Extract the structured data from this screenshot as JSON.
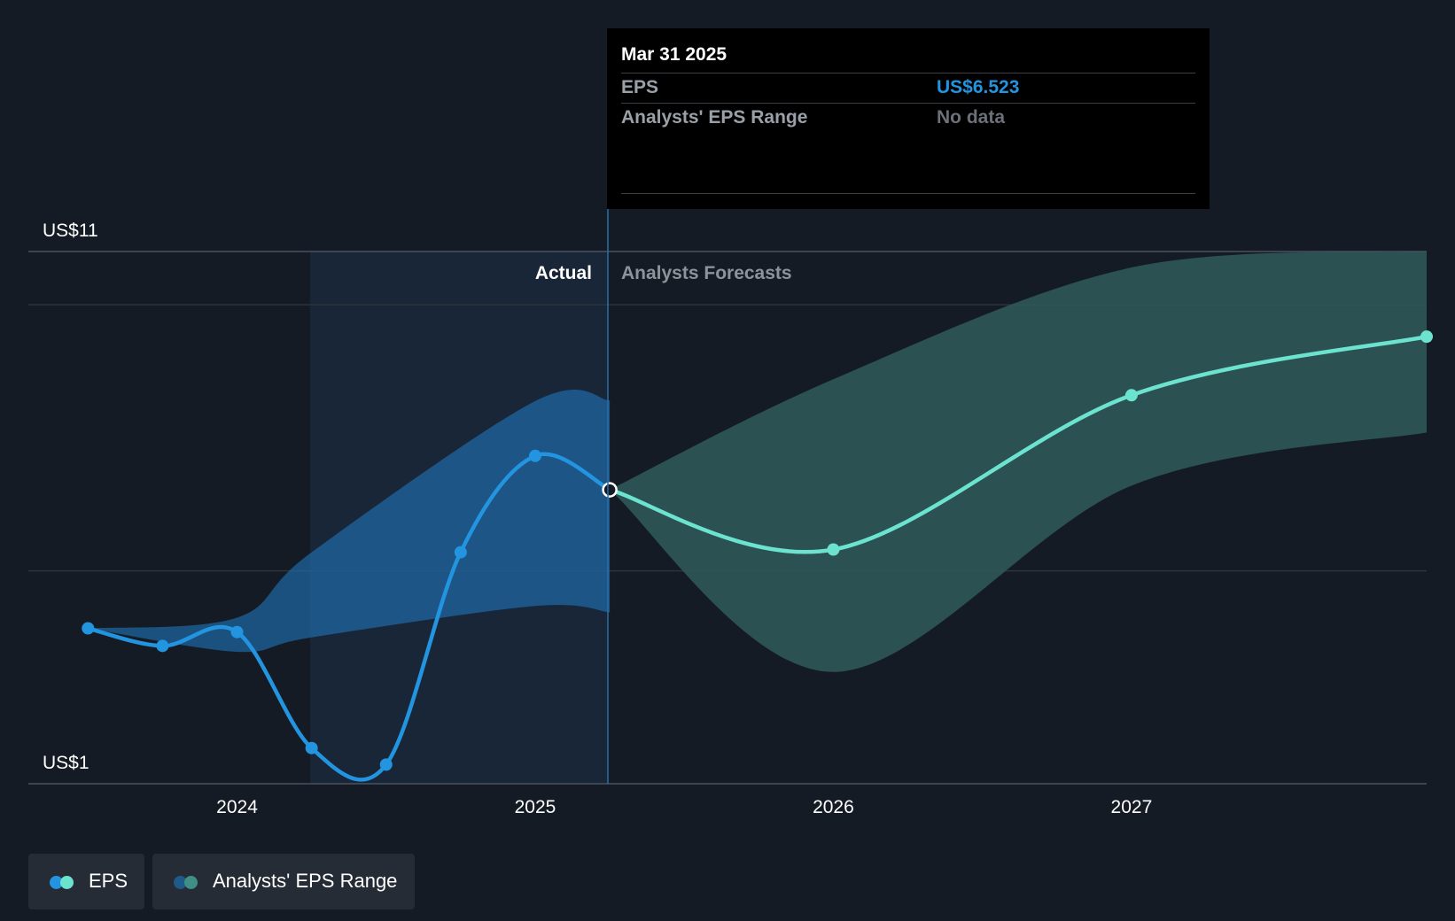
{
  "colors": {
    "background": "#151b24",
    "eps_actual": "#2394df",
    "eps_forecast": "#6ce3cf",
    "range_actual": "#1f6fb0",
    "range_forecast": "#2f5a5a",
    "tooltip_value": "#2394df",
    "tooltip_nodata": "#6b7079"
  },
  "tooltip": {
    "date": "Mar 31 2025",
    "rows": [
      {
        "label": "EPS",
        "value": "US$6.523"
      },
      {
        "label": "Analysts' EPS Range",
        "value": "No data"
      }
    ]
  },
  "legend": [
    {
      "label": "EPS",
      "icon": "eps-legend-icon"
    },
    {
      "label": "Analysts' EPS Range",
      "icon": "range-legend-icon"
    }
  ],
  "chart_data": {
    "type": "line",
    "ylabels": [
      "US$11",
      "US$1"
    ],
    "ylim": [
      1,
      11
    ],
    "xticks": [
      {
        "label": "2024",
        "x": 2024.0
      },
      {
        "label": "2025",
        "x": 2025.0
      },
      {
        "label": "2026",
        "x": 2026.0
      },
      {
        "label": "2027",
        "x": 2027.0
      }
    ],
    "xlim": [
      2023.3,
      2027.99
    ],
    "divider_x": 2025.25,
    "highlight_start_x": 2024.25,
    "period_labels": {
      "actual": "Actual",
      "forecast": "Analysts Forecasts"
    },
    "series": [
      {
        "name": "EPS",
        "points": [
          {
            "x": 2023.5,
            "y": 3.92
          },
          {
            "x": 2023.75,
            "y": 3.59
          },
          {
            "x": 2024.0,
            "y": 3.85
          },
          {
            "x": 2024.25,
            "y": 1.67
          },
          {
            "x": 2024.5,
            "y": 1.36
          },
          {
            "x": 2024.75,
            "y": 5.35
          },
          {
            "x": 2025.0,
            "y": 7.16
          },
          {
            "x": 2025.25,
            "y": 6.523
          }
        ]
      },
      {
        "name": "EPS Forecast",
        "points": [
          {
            "x": 2025.25,
            "y": 6.523
          },
          {
            "x": 2026.0,
            "y": 5.4
          },
          {
            "x": 2027.0,
            "y": 8.3
          },
          {
            "x": 2027.99,
            "y": 9.4
          }
        ]
      }
    ],
    "range_actual": [
      {
        "x": 2023.5,
        "low": 3.92,
        "high": 3.92
      },
      {
        "x": 2024.0,
        "low": 3.48,
        "high": 4.12
      },
      {
        "x": 2024.25,
        "low": 3.75,
        "high": 5.35
      },
      {
        "x": 2025.0,
        "low": 4.34,
        "high": 8.19
      },
      {
        "x": 2025.25,
        "low": 4.22,
        "high": 8.2
      }
    ],
    "range_forecast": [
      {
        "x": 2025.25,
        "low": 6.523,
        "high": 6.523
      },
      {
        "x": 2026.0,
        "low": 3.1,
        "high": 8.6
      },
      {
        "x": 2027.0,
        "low": 6.6,
        "high": 10.7
      },
      {
        "x": 2027.99,
        "low": 7.6,
        "high": 11.0
      }
    ]
  }
}
